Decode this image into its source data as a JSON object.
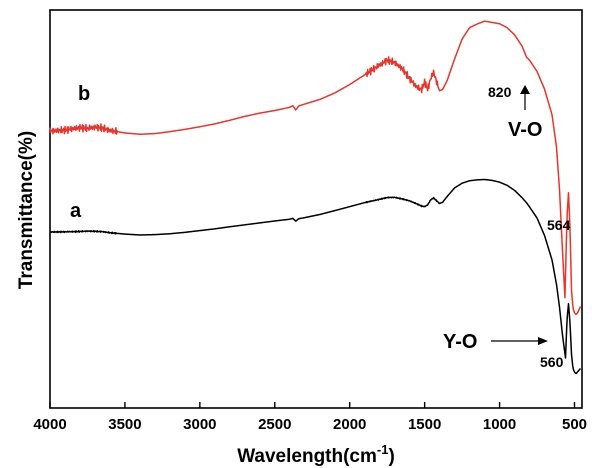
{
  "chart_data": {
    "type": "line",
    "xlabel_base": "Wavelength(cm",
    "xlabel_sup": "-1",
    "xlabel_close": ")",
    "ylabel": "Transmittance(%)",
    "xlim": [
      4000,
      450
    ],
    "x_reversed": true,
    "x_ticks": [
      "4000",
      "3500",
      "3000",
      "2500",
      "2000",
      "1500",
      "1000",
      "500"
    ],
    "y_ticks_shown": false,
    "grid": false,
    "series": [
      {
        "name": "b",
        "color": "#e8352c",
        "x": [
          4000,
          3900,
          3800,
          3750,
          3700,
          3650,
          3600,
          3500,
          3400,
          3300,
          3200,
          3100,
          3000,
          2900,
          2800,
          2700,
          2600,
          2500,
          2400,
          2380,
          2360,
          2340,
          2300,
          2200,
          2100,
          2000,
          1900,
          1800,
          1750,
          1700,
          1650,
          1600,
          1550,
          1520,
          1500,
          1480,
          1460,
          1440,
          1420,
          1400,
          1380,
          1350,
          1300,
          1250,
          1200,
          1150,
          1100,
          1050,
          1000,
          950,
          900,
          850,
          820,
          800,
          750,
          700,
          650,
          620,
          600,
          580,
          564,
          550,
          540,
          530,
          520,
          510,
          500,
          490,
          480,
          470,
          460
        ],
        "y": [
          0.0,
          0.003,
          0.01,
          0.008,
          0.012,
          0.009,
          0.002,
          -0.006,
          -0.01,
          -0.008,
          -0.002,
          0.005,
          0.013,
          0.022,
          0.033,
          0.045,
          0.055,
          0.063,
          0.073,
          0.078,
          0.065,
          0.077,
          0.083,
          0.097,
          0.117,
          0.143,
          0.173,
          0.203,
          0.218,
          0.211,
          0.192,
          0.161,
          0.134,
          0.128,
          0.151,
          0.128,
          0.161,
          0.181,
          0.151,
          0.124,
          0.128,
          0.155,
          0.222,
          0.283,
          0.318,
          0.329,
          0.338,
          0.334,
          0.33,
          0.318,
          0.296,
          0.261,
          0.227,
          0.218,
          0.183,
          0.129,
          0.05,
          -0.05,
          -0.18,
          -0.37,
          -0.513,
          -0.262,
          -0.19,
          -0.3,
          -0.49,
          -0.545,
          -0.56,
          -0.565,
          -0.56,
          -0.55,
          -0.54
        ]
      },
      {
        "name": "a",
        "color": "#000000",
        "x": [
          4000,
          3900,
          3800,
          3750,
          3700,
          3650,
          3600,
          3500,
          3400,
          3300,
          3200,
          3100,
          3000,
          2900,
          2800,
          2700,
          2600,
          2500,
          2400,
          2380,
          2360,
          2340,
          2300,
          2200,
          2100,
          2000,
          1900,
          1800,
          1750,
          1700,
          1650,
          1600,
          1550,
          1520,
          1500,
          1480,
          1460,
          1440,
          1420,
          1400,
          1380,
          1350,
          1300,
          1250,
          1200,
          1150,
          1100,
          1050,
          1000,
          950,
          900,
          850,
          820,
          800,
          750,
          700,
          650,
          620,
          600,
          580,
          560,
          550,
          540,
          530,
          520,
          510,
          500,
          490,
          480,
          470,
          460
        ],
        "y": [
          0.0,
          0.001,
          0.003,
          0.005,
          0.004,
          0.002,
          -0.004,
          -0.012,
          -0.017,
          -0.015,
          -0.01,
          -0.002,
          0.008,
          0.018,
          0.03,
          0.041,
          0.052,
          0.063,
          0.073,
          0.078,
          0.062,
          0.076,
          0.082,
          0.1,
          0.122,
          0.145,
          0.168,
          0.187,
          0.197,
          0.198,
          0.189,
          0.178,
          0.16,
          0.148,
          0.145,
          0.155,
          0.183,
          0.195,
          0.178,
          0.163,
          0.17,
          0.203,
          0.252,
          0.279,
          0.293,
          0.298,
          0.3,
          0.295,
          0.285,
          0.267,
          0.238,
          0.196,
          0.167,
          0.143,
          0.08,
          -0.02,
          -0.16,
          -0.3,
          -0.43,
          -0.59,
          -0.72,
          -0.5,
          -0.41,
          -0.52,
          -0.7,
          -0.78,
          -0.8,
          -0.81,
          -0.8,
          -0.79,
          -0.78
        ]
      }
    ],
    "annotations": {
      "label_b": "b",
      "label_a": "a",
      "mark_820": "820",
      "vo": "V-O",
      "mark_564": "564",
      "yo": "Y-O",
      "mark_560": "560"
    }
  }
}
